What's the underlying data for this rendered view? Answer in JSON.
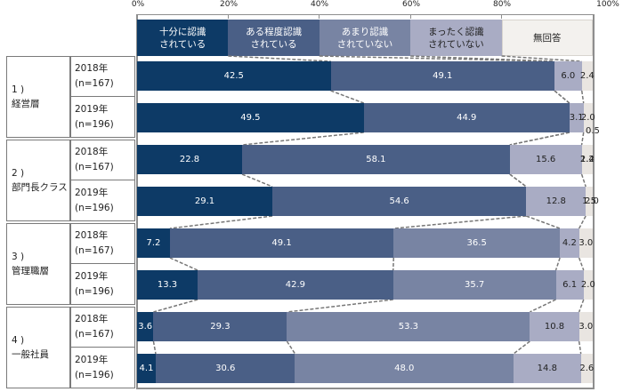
{
  "chart_data": {
    "type": "bar",
    "orientation": "horizontal-stacked-100",
    "title": "",
    "xlabel": "",
    "ylabel": "",
    "xlim": [
      0,
      100
    ],
    "x_ticks": [
      "0%",
      "20%",
      "40%",
      "60%",
      "80%",
      "100%"
    ],
    "legend": {
      "position": "top",
      "entries": [
        {
          "label": "十分に認識\nされている",
          "color": "#0d3a66",
          "text_color": "#ffffff"
        },
        {
          "label": "ある程度認識\nされている",
          "color": "#4a5f86",
          "text_color": "#ffffff"
        },
        {
          "label": "あまり認識\nされていない",
          "color": "#7884a3",
          "text_color": "#ffffff"
        },
        {
          "label": "まったく認識\nされていない",
          "color": "#a9acc4",
          "text_color": "#222222"
        },
        {
          "label": "無回答",
          "color": "#f3f1ee",
          "text_color": "#222222"
        }
      ]
    },
    "groups": [
      {
        "label": "1 )\n経営層",
        "rows": [
          0,
          1
        ]
      },
      {
        "label": "2 )\n部門長クラス",
        "rows": [
          2,
          3
        ]
      },
      {
        "label": "3 )\n管理職層",
        "rows": [
          4,
          5
        ]
      },
      {
        "label": "4 )\n一般社員",
        "rows": [
          6,
          7
        ]
      }
    ],
    "categories": [
      "1) 経営層 2018年 (n=167)",
      "1) 経営層 2019年 (n=196)",
      "2) 部門長クラス 2018年 (n=167)",
      "2) 部門長クラス 2019年 (n=196)",
      "3) 管理職層 2018年 (n=167)",
      "3) 管理職層 2019年 (n=196)",
      "4) 一般社員 2018年 (n=167)",
      "4) 一般社員 2019年 (n=196)"
    ],
    "series": [
      {
        "name": "十分に認識されている",
        "values": [
          42.5,
          49.5,
          22.8,
          29.1,
          7.2,
          13.3,
          3.6,
          4.1
        ]
      },
      {
        "name": "ある程度認識されている",
        "values": [
          49.1,
          44.9,
          58.1,
          54.6,
          49.1,
          42.9,
          29.3,
          30.6
        ]
      },
      {
        "name": "あまり認識されていない",
        "values": [
          0.0,
          0.0,
          0.0,
          0.0,
          36.5,
          35.7,
          53.3,
          48.0
        ]
      },
      {
        "name": "まったく認識されていない",
        "values": [
          6.0,
          3.1,
          15.6,
          12.8,
          4.2,
          6.1,
          10.8,
          14.8
        ]
      },
      {
        "name": "無回答",
        "values": [
          2.4,
          2.0,
          2.4,
          1.5,
          3.0,
          2.0,
          3.0,
          2.6
        ]
      }
    ],
    "extra_labels": [
      {
        "row": 1,
        "text": "0.5",
        "note": "small segment label below bar"
      },
      {
        "row": 2,
        "text": "1.2"
      },
      {
        "row": 3,
        "text": "2.0"
      }
    ]
  },
  "rows": [
    {
      "year": "2018年",
      "n": "(n=167)",
      "labels": [
        "42.5",
        "49.1",
        "",
        "6.0",
        "2.4"
      ]
    },
    {
      "year": "2019年",
      "n": "(n=196)",
      "labels": [
        "49.5",
        "44.9",
        "",
        "3.1",
        "2.0"
      ]
    },
    {
      "year": "2018年",
      "n": "(n=167)",
      "labels": [
        "22.8",
        "58.1",
        "",
        "15.6",
        "2.4"
      ]
    },
    {
      "year": "2019年",
      "n": "(n=196)",
      "labels": [
        "29.1",
        "54.6",
        "",
        "12.8",
        "1.5"
      ]
    },
    {
      "year": "2018年",
      "n": "(n=167)",
      "labels": [
        "7.2",
        "49.1",
        "36.5",
        "4.2",
        "3.0"
      ]
    },
    {
      "year": "2019年",
      "n": "(n=196)",
      "labels": [
        "13.3",
        "42.9",
        "35.7",
        "6.1",
        "2.0"
      ]
    },
    {
      "year": "2018年",
      "n": "(n=167)",
      "labels": [
        "3.6",
        "29.3",
        "53.3",
        "10.8",
        "3.0"
      ]
    },
    {
      "year": "2019年",
      "n": "(n=196)",
      "labels": [
        "4.1",
        "30.6",
        "48.0",
        "14.8",
        "2.6"
      ]
    }
  ],
  "groups": [
    {
      "label": "1 )\n経営層"
    },
    {
      "label": "2 )\n部門長クラス"
    },
    {
      "label": "3 )\n管理職層"
    },
    {
      "label": "4 )\n一般社員"
    }
  ]
}
